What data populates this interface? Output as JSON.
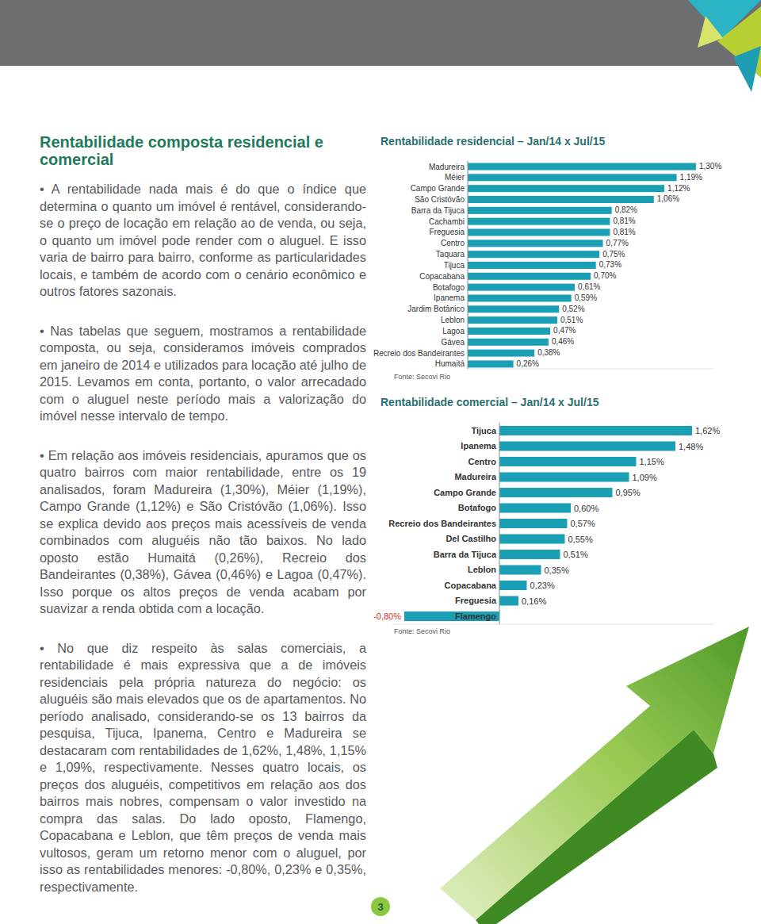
{
  "page": {
    "title": "Rentabilidade composta residencial e comercial",
    "paragraphs": [
      "• A rentabilidade nada mais é do que o índice que determina o quanto um imóvel é rentável, considerando-se o preço de locação em relação ao de venda, ou seja, o quanto um imóvel pode render com o aluguel. E isso varia de bairro para bairro, conforme as particularidades locais, e também de acordo com o cenário econômico e outros fatores sazonais.",
      "• Nas tabelas que seguem, mostramos a rentabilidade composta, ou seja, consideramos imóveis comprados em janeiro de 2014 e utilizados para locação até julho de 2015. Levamos em conta, portanto, o valor arrecadado com o aluguel neste período mais a valorização do imóvel nesse intervalo de tempo.",
      "• Em relação aos imóveis residenciais, apuramos que os quatro bairros com maior rentabilidade, entre os 19 analisados, foram Madureira (1,30%), Méier (1,19%), Campo Grande (1,12%) e São Cristóvão (1,06%). Isso se explica devido aos preços mais acessíveis de venda combinados com aluguéis não tão baixos. No lado oposto estão Humaitá (0,26%), Recreio dos Bandeirantes (0,38%), Gávea (0,46%) e Lagoa (0,47%). Isso porque os altos preços de venda acabam por suavizar a renda obtida com a locação.",
      "• No que diz respeito às salas comerciais, a rentabilidade é mais expressiva que a de imóveis residenciais pela própria natureza do negócio: os aluguéis são mais elevados que os de apartamentos. No período analisado, considerando-se os 13 bairros da pesquisa, Tijuca, Ipanema, Centro e Madureira se destacaram com rentabilidades de 1,62%, 1,48%, 1,15% e 1,09%, respectivamente. Nesses quatro locais, os preços dos aluguéis, competitivos em relação aos dos bairros mais nobres, compensam o valor investido na compra das salas. Do lado oposto, Flamengo, Copacabana e Leblon, que têm preços de venda mais vultosos, geram um retorno menor com o aluguel, por isso as rentabilidades menores: -0,80%, 0,23% e 0,35%, respectivamente."
    ],
    "page_number": "3"
  },
  "chart_data": [
    {
      "type": "bar",
      "orientation": "horizontal",
      "title": "Rentabilidade residencial – Jan/14 x Jul/15",
      "source": "Fonte: Secovi Rio",
      "categories": [
        "Madureira",
        "Méier",
        "Campo Grande",
        "São Cristóvão",
        "Barra da Tijuca",
        "Cachambi",
        "Freguesia",
        "Centro",
        "Taquara",
        "Tijuca",
        "Copacabana",
        "Botafogo",
        "Ipanema",
        "Jardim Botânico",
        "Leblon",
        "Lagoa",
        "Gávea",
        "Recreio dos Bandeirantes",
        "Humaitá"
      ],
      "values": [
        1.3,
        1.19,
        1.12,
        1.06,
        0.82,
        0.81,
        0.81,
        0.77,
        0.75,
        0.73,
        0.7,
        0.61,
        0.59,
        0.52,
        0.51,
        0.47,
        0.46,
        0.38,
        0.26
      ],
      "value_labels": [
        "1,30%",
        "1,19%",
        "1,12%",
        "1,06%",
        "0,82%",
        "0,81%",
        "0,81%",
        "0,77%",
        "0,75%",
        "0,73%",
        "0,70%",
        "0,61%",
        "0,59%",
        "0,52%",
        "0,51%",
        "0,47%",
        "0,46%",
        "0,38%",
        "0,26%"
      ],
      "color": "#1a9fb4",
      "xlim": [
        0,
        1.4
      ],
      "xticks": [],
      "data_labels": true,
      "tick_labels": "y",
      "grid": false
    },
    {
      "type": "bar",
      "orientation": "horizontal",
      "title": "Rentabilidade comercial – Jan/14 x Jul/15",
      "source": "Fonte: Secovi Rio",
      "categories": [
        "Tijuca",
        "Ipanema",
        "Centro",
        "Madureira",
        "Campo Grande",
        "Botafogo",
        "Recreio dos Bandeirantes",
        "Del Castilho",
        "Barra da Tijuca",
        "Leblon",
        "Copacabana",
        "Freguesia",
        "Flamengo"
      ],
      "values": [
        1.62,
        1.48,
        1.15,
        1.09,
        0.95,
        0.6,
        0.57,
        0.55,
        0.51,
        0.35,
        0.23,
        0.16,
        -0.8
      ],
      "value_labels": [
        "1,62%",
        "1,48%",
        "1,15%",
        "1,09%",
        "0,95%",
        "0,60%",
        "0,57%",
        "0,55%",
        "0,51%",
        "0,35%",
        "0,23%",
        "0,16%",
        "-0,80%"
      ],
      "color": "#1a9fb4",
      "xlim": [
        -0.9,
        1.8
      ],
      "xticks": [],
      "data_labels": true,
      "tick_labels": "y",
      "grid": false
    }
  ]
}
